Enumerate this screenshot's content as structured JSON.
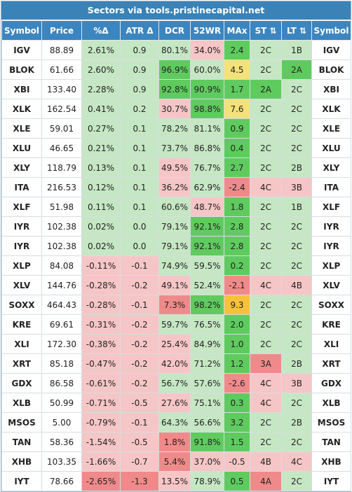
{
  "header": {
    "title": "Sectors via tools.pristinecapital.net"
  },
  "table": {
    "columns": [
      "Symbol",
      "Price",
      "%Δ",
      "ATR Δ",
      "DCR",
      "52WR",
      "MAx",
      "ST ⇅",
      "LT ⇅",
      "Symbol"
    ],
    "rows": [
      [
        "IGV",
        "88.89",
        "2.61%",
        "0.9",
        "80.1%",
        "34.0%",
        "2.4",
        "2C",
        "1B",
        "IGV"
      ],
      [
        "BLOK",
        "61.66",
        "2.60%",
        "0.9",
        "96.9%",
        "60.0%",
        "4.5",
        "2C",
        "2A",
        "BLOK"
      ],
      [
        "XBI",
        "133.40",
        "2.28%",
        "0.9",
        "92.8%",
        "90.9%",
        "1.7",
        "2A",
        "2C",
        "XBI"
      ],
      [
        "XLK",
        "162.54",
        "0.41%",
        "0.2",
        "30.7%",
        "98.8%",
        "7.6",
        "2C",
        "2C",
        "XLK"
      ],
      [
        "XLE",
        "59.01",
        "0.27%",
        "0.1",
        "78.2%",
        "81.1%",
        "0.9",
        "2C",
        "2C",
        "XLE"
      ],
      [
        "XLU",
        "46.65",
        "0.21%",
        "0.1",
        "73.7%",
        "86.8%",
        "0.4",
        "2C",
        "2C",
        "XLU"
      ],
      [
        "XLY",
        "118.79",
        "0.13%",
        "0.1",
        "49.5%",
        "76.7%",
        "2.7",
        "2C",
        "2B",
        "XLY"
      ],
      [
        "ITA",
        "216.53",
        "0.12%",
        "0.1",
        "36.2%",
        "62.9%",
        "-2.4",
        "4C",
        "3B",
        "ITA"
      ],
      [
        "XLF",
        "51.98",
        "0.11%",
        "0.1",
        "60.6%",
        "48.7%",
        "1.8",
        "2C",
        "1B",
        "XLF"
      ],
      [
        "IYR",
        "102.38",
        "0.02%",
        "0.0",
        "79.1%",
        "92.1%",
        "2.8",
        "2C",
        "2C",
        "IYR"
      ],
      [
        "IYR",
        "102.38",
        "0.02%",
        "0.0",
        "79.1%",
        "92.1%",
        "2.8",
        "2C",
        "2C",
        "IYR"
      ],
      [
        "XLP",
        "84.08",
        "-0.11%",
        "-0.1",
        "74.9%",
        "59.5%",
        "0.2",
        "2C",
        "2C",
        "XLP"
      ],
      [
        "XLV",
        "144.76",
        "-0.28%",
        "-0.2",
        "49.1%",
        "52.4%",
        "-2.1",
        "4C",
        "4B",
        "XLV"
      ],
      [
        "SOXX",
        "464.43",
        "-0.28%",
        "-0.1",
        "7.3%",
        "98.2%",
        "9.3",
        "2C",
        "2C",
        "SOXX"
      ],
      [
        "KRE",
        "69.61",
        "-0.31%",
        "-0.2",
        "59.7%",
        "76.5%",
        "2.0",
        "2C",
        "2C",
        "KRE"
      ],
      [
        "XLI",
        "172.30",
        "-0.38%",
        "-0.2",
        "25.4%",
        "84.9%",
        "1.0",
        "2C",
        "2C",
        "XLI"
      ],
      [
        "XRT",
        "85.18",
        "-0.47%",
        "-0.2",
        "42.0%",
        "71.2%",
        "1.2",
        "3A",
        "2B",
        "XRT"
      ],
      [
        "GDX",
        "86.58",
        "-0.61%",
        "-0.2",
        "56.7%",
        "57.6%",
        "-2.6",
        "4C",
        "3B",
        "GDX"
      ],
      [
        "XLB",
        "50.99",
        "-0.71%",
        "-0.5",
        "27.6%",
        "75.1%",
        "0.3",
        "4C",
        "2C",
        "XLB"
      ],
      [
        "MSOS",
        "5.00",
        "-0.79%",
        "-0.1",
        "64.3%",
        "56.6%",
        "3.2",
        "2C",
        "2B",
        "MSOS"
      ],
      [
        "TAN",
        "58.36",
        "-1.54%",
        "-0.5",
        "1.8%",
        "91.8%",
        "1.5",
        "2C",
        "2C",
        "TAN"
      ],
      [
        "XHB",
        "103.35",
        "-1.66%",
        "-0.7",
        "5.4%",
        "37.0%",
        "-0.5",
        "4B",
        "4C",
        "XHB"
      ],
      [
        "IYT",
        "78.66",
        "-2.65%",
        "-1.3",
        "13.5%",
        "78.9%",
        "0.5",
        "4A",
        "2C",
        "IYT"
      ]
    ]
  }
}
